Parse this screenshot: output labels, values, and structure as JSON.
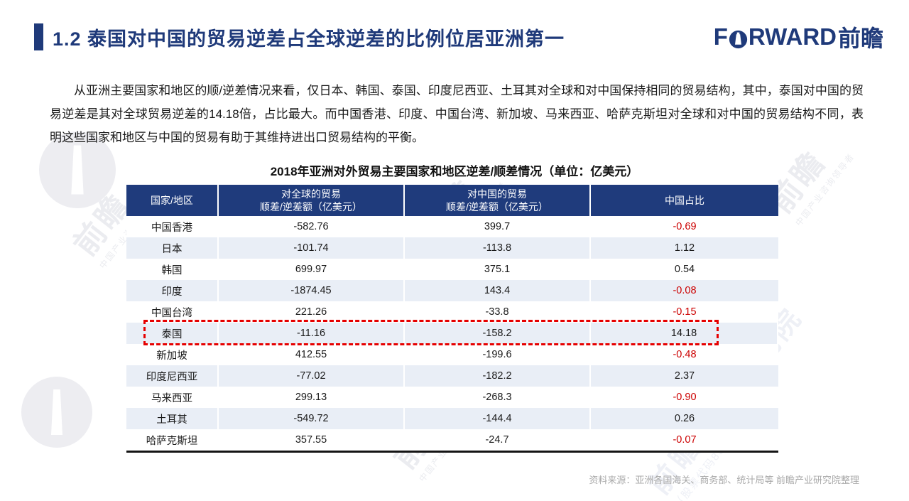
{
  "slide": {
    "title": "1.2 泰国对中国的贸易逆差占全球逆差的比例位居亚洲第一",
    "logo": {
      "en_pre": "F",
      "en_post": "RWARD",
      "cn": "前瞻"
    },
    "paragraph": "从亚洲主要国家和地区的顺/逆差情况来看，仅日本、韩国、泰国、印度尼西亚、土耳其对全球和对中国保持相同的贸易结构，其中，泰国对中国的贸易逆差是其对全球贸易逆差的14.18倍，占比最大。而中国香港、印度、中国台湾、新加坡、马来西亚、哈萨克斯坦对全球和对中国的贸易结构不同，表明这些国家和地区与中国的贸易有助于其维持进出口贸易结构的平衡。",
    "source_note": "资料来源：亚洲各国海关、商务部、统计局等  前瞻产业研究院整理"
  },
  "table": {
    "title": "2018年亚洲对外贸易主要国家和地区逆差/顺差情况（单位：亿美元）",
    "columns": [
      {
        "line1": "国家/地区",
        "line2": ""
      },
      {
        "line1": "对全球的贸易",
        "line2": "顺差/逆差额（亿美元）"
      },
      {
        "line1": "对中国的贸易",
        "line2": "顺差/逆差额（亿美元）"
      },
      {
        "line1": "中国占比",
        "line2": ""
      }
    ],
    "rows": [
      {
        "name": "中国香港",
        "global": "-582.76",
        "china": "399.7",
        "ratio": "-0.69",
        "highlight": false
      },
      {
        "name": "日本",
        "global": "-101.74",
        "china": "-113.8",
        "ratio": "1.12",
        "highlight": false
      },
      {
        "name": "韩国",
        "global": "699.97",
        "china": "375.1",
        "ratio": "0.54",
        "highlight": false
      },
      {
        "name": "印度",
        "global": "-1874.45",
        "china": "143.4",
        "ratio": "-0.08",
        "highlight": false
      },
      {
        "name": "中国台湾",
        "global": "221.26",
        "china": "-33.8",
        "ratio": "-0.15",
        "highlight": false
      },
      {
        "name": "泰国",
        "global": "-11.16",
        "china": "-158.2",
        "ratio": "14.18",
        "highlight": true
      },
      {
        "name": "新加坡",
        "global": "412.55",
        "china": "-199.6",
        "ratio": "-0.48",
        "highlight": false
      },
      {
        "name": "印度尼西亚",
        "global": "-77.02",
        "china": "-182.2",
        "ratio": "2.37",
        "highlight": false
      },
      {
        "name": "马来西亚",
        "global": "299.13",
        "china": "-268.3",
        "ratio": "-0.90",
        "highlight": false
      },
      {
        "name": "土耳其",
        "global": "-549.72",
        "china": "-144.4",
        "ratio": "0.26",
        "highlight": false
      },
      {
        "name": "哈萨克斯坦",
        "global": "357.55",
        "china": "-24.7",
        "ratio": "-0.07",
        "highlight": false
      }
    ]
  },
  "watermark": {
    "brand": "前瞻",
    "sub": "中国产业咨询领导者",
    "org": "前瞻产业研究院",
    "code": "（股票代码839599）"
  },
  "colors": {
    "navy": "#1f3b7c",
    "light_row": "#e9eef6",
    "negative_red": "#cc0000",
    "dash_red": "#e60000",
    "footer_gray": "#a9a9a9"
  }
}
